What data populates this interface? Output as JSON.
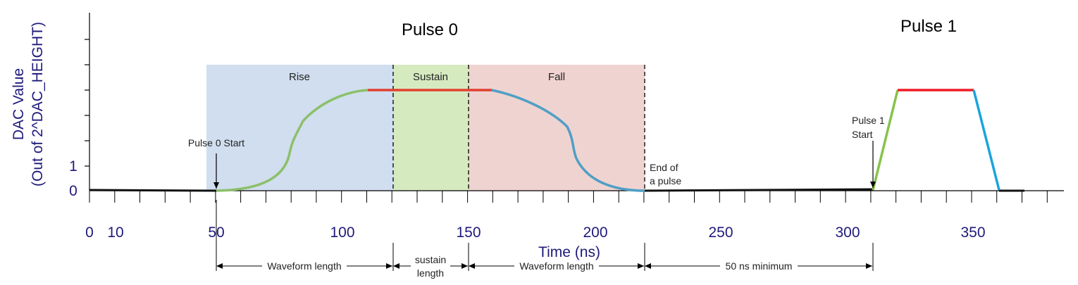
{
  "titles": {
    "pulse0": "Pulse 0",
    "pulse1": "Pulse 1"
  },
  "y_axis": {
    "label_line1": "DAC Value",
    "label_line2": "(Out of 2^DAC_HEIGHT)",
    "tick_labels": [
      "0",
      "1"
    ]
  },
  "x_axis": {
    "label": "Time (ns)",
    "tick_labels": [
      "0",
      "10",
      "50",
      "100",
      "150",
      "200",
      "250",
      "300",
      "350"
    ]
  },
  "regions": {
    "rise": "Rise",
    "sustain": "Sustain",
    "fall": "Fall"
  },
  "annotations": {
    "pulse0_start": "Pulse 0 Start",
    "pulse1_start_line1": "Pulse 1",
    "pulse1_start_line2": "Start",
    "end_line1": "End of",
    "end_line2": "a pulse"
  },
  "dimensions": {
    "waveform_length_1": "Waveform length",
    "sustain_line1": "sustain",
    "sustain_line2": "length",
    "waveform_length_2": "Waveform length",
    "minimum": "50 ns minimum"
  },
  "colors": {
    "axis_text": "#1f1a7a",
    "rise_fill": "#d0deef",
    "sustain_fill": "#d6eac0",
    "fall_fill": "#efd3d0",
    "rise_curve": "#8cc06a",
    "fall_curve": "#4f9fc6",
    "sustain_line": "#e03030",
    "pulse1_rise": "#86c34a",
    "pulse1_fall": "#1aa4dd",
    "pulse1_top": "#ee1c24"
  }
}
